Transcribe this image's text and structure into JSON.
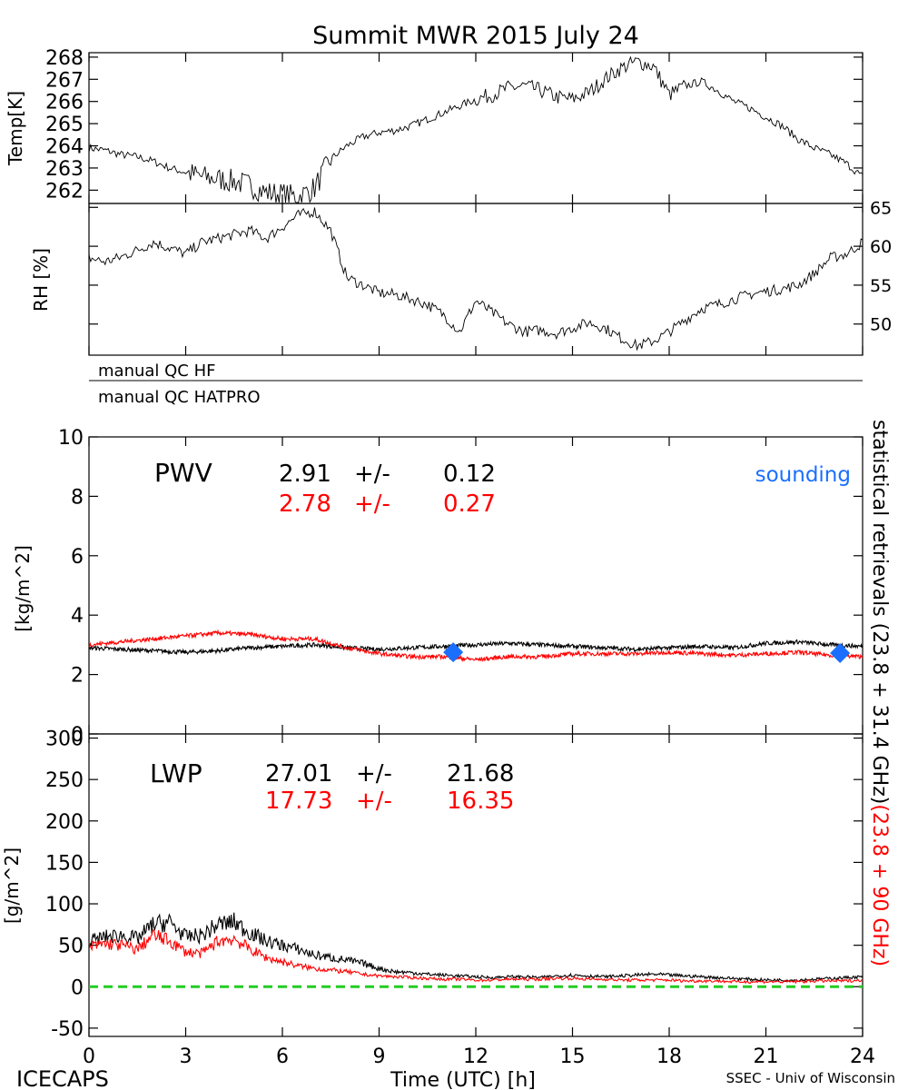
{
  "figure": {
    "title": "Summit MWR 2015 July 24",
    "footer_left": "ICECAPS",
    "footer_right": "SSEC - Univ of Wisconsin",
    "xlabel": "Time (UTC) [h]",
    "xticks": [
      "0",
      "3",
      "6",
      "9",
      "12",
      "15",
      "18",
      "21",
      "24"
    ],
    "right_label_black": "statistical retrievals (23.8 + 31.4 GHz)",
    "right_label_red": "(23.8 + 90 GHz)",
    "qc_labels": [
      "manual QC HF",
      "manual QC HATPRO"
    ]
  },
  "colors": {
    "black_series": "#000000",
    "red_series": "#ff0000",
    "sounding": "#1a6fff",
    "zero_line": "#22cc22"
  },
  "chart_data": [
    {
      "type": "line",
      "name": "temperature",
      "ylabel": "Temp[K]",
      "yticks": [
        "262",
        "263",
        "264",
        "265",
        "266",
        "267",
        "268"
      ],
      "ylim": [
        261.4,
        268.2
      ],
      "x": [
        0,
        0.5,
        1,
        1.5,
        2,
        2.5,
        3,
        3.5,
        4,
        4.5,
        5,
        5.5,
        6,
        6.5,
        7,
        7.5,
        8,
        8.5,
        9,
        9.5,
        10,
        10.5,
        11,
        11.5,
        12,
        12.5,
        13,
        13.5,
        14,
        14.5,
        15,
        15.5,
        16,
        16.5,
        17,
        17.5,
        18,
        18.5,
        19,
        19.5,
        20,
        20.5,
        21,
        21.5,
        22,
        22.5,
        23,
        23.5,
        24
      ],
      "values": [
        263.9,
        263.8,
        263.6,
        263.5,
        263.3,
        263.0,
        262.8,
        262.6,
        262.5,
        262.4,
        262.2,
        261.9,
        261.8,
        261.7,
        262.1,
        263.4,
        264.0,
        264.4,
        264.6,
        264.7,
        264.9,
        265.2,
        265.5,
        265.8,
        266.1,
        266.3,
        266.6,
        266.7,
        266.5,
        266.2,
        266.1,
        266.4,
        267.0,
        267.5,
        267.8,
        267.6,
        266.3,
        266.7,
        266.9,
        266.5,
        266.0,
        265.7,
        265.3,
        264.9,
        264.3,
        263.9,
        263.6,
        263.2,
        262.6
      ]
    },
    {
      "type": "line",
      "name": "relative-humidity",
      "ylabel": "RH [%]",
      "yticks": [
        "50",
        "55",
        "60",
        "65"
      ],
      "ylim": [
        46,
        65.5
      ],
      "x": [
        0,
        0.5,
        1,
        1.5,
        2,
        2.5,
        3,
        3.5,
        4,
        4.5,
        5,
        5.5,
        6,
        6.5,
        7,
        7.5,
        8,
        8.5,
        9,
        9.5,
        10,
        10.5,
        11,
        11.5,
        12,
        12.5,
        13,
        13.5,
        14,
        14.5,
        15,
        15.5,
        16,
        16.5,
        17,
        17.5,
        18,
        18.5,
        19,
        19.5,
        20,
        20.5,
        21,
        21.5,
        22,
        22.5,
        23,
        23.5,
        24
      ],
      "values": [
        58.5,
        58.0,
        58.6,
        59.5,
        60.5,
        59.8,
        59.0,
        60.5,
        61.0,
        61.5,
        62.0,
        61.0,
        62.5,
        64.0,
        64.5,
        62.0,
        56.0,
        55.0,
        54.0,
        53.8,
        53.2,
        52.5,
        51.2,
        49.0,
        53.0,
        51.5,
        50.0,
        49.0,
        49.2,
        48.8,
        49.5,
        50.2,
        49.5,
        48.2,
        47.2,
        47.8,
        49.0,
        50.5,
        52.0,
        52.5,
        53.2,
        53.8,
        54.2,
        54.5,
        55.0,
        56.5,
        58.5,
        59.0,
        60.5
      ]
    },
    {
      "type": "line",
      "name": "pwv",
      "panel_label": "PWV",
      "ylabel": "[kg/m^2]",
      "yticks": [
        "0",
        "2",
        "4",
        "6",
        "8",
        "10"
      ],
      "ylim": [
        0,
        10
      ],
      "stats": [
        {
          "mean": "2.91",
          "pm": "+/-",
          "sd": "0.12"
        },
        {
          "mean": "2.78",
          "pm": "+/-",
          "sd": "0.27"
        }
      ],
      "legend_sounding": "sounding",
      "x": [
        0,
        1,
        2,
        3,
        4,
        5,
        6,
        7,
        8,
        9,
        10,
        11,
        12,
        13,
        14,
        15,
        16,
        17,
        18,
        19,
        20,
        21,
        22,
        23,
        24
      ],
      "series": [
        {
          "color": "black",
          "values": [
            2.9,
            2.85,
            2.8,
            2.75,
            2.8,
            2.9,
            2.95,
            3.0,
            2.9,
            2.85,
            2.9,
            2.95,
            3.0,
            3.05,
            3.0,
            2.95,
            2.9,
            2.85,
            2.9,
            2.95,
            2.9,
            3.05,
            3.1,
            3.0,
            2.95
          ]
        },
        {
          "color": "red",
          "values": [
            3.0,
            3.1,
            3.2,
            3.3,
            3.4,
            3.35,
            3.2,
            3.2,
            2.9,
            2.7,
            2.6,
            2.6,
            2.5,
            2.6,
            2.6,
            2.7,
            2.7,
            2.7,
            2.75,
            2.7,
            2.65,
            2.7,
            2.75,
            2.65,
            2.6
          ]
        }
      ],
      "sounding_points": [
        [
          11.3,
          2.75
        ],
        [
          23.3,
          2.72
        ]
      ]
    },
    {
      "type": "line",
      "name": "lwp",
      "panel_label": "LWP",
      "ylabel": "[g/m^2]",
      "yticks": [
        "-50",
        "0",
        "50",
        "100",
        "150",
        "200",
        "250",
        "300"
      ],
      "ylim": [
        -60,
        305
      ],
      "stats": [
        {
          "mean": "27.01",
          "pm": "+/-",
          "sd": "21.68"
        },
        {
          "mean": "17.73",
          "pm": "+/-",
          "sd": "16.35"
        }
      ],
      "x": [
        0,
        0.5,
        1,
        1.5,
        2,
        2.5,
        3,
        3.5,
        4,
        4.5,
        5,
        5.5,
        6,
        6.5,
        7,
        7.5,
        8,
        8.5,
        9,
        9.5,
        10,
        10.5,
        11,
        11.5,
        12,
        12.5,
        13,
        13.5,
        14,
        14.5,
        15,
        15.5,
        16,
        16.5,
        17,
        17.5,
        18,
        18.5,
        19,
        19.5,
        20,
        20.5,
        21,
        21.5,
        22,
        22.5,
        23,
        23.5,
        24
      ],
      "series": [
        {
          "color": "black",
          "values": [
            55,
            60,
            62,
            58,
            75,
            78,
            60,
            62,
            75,
            78,
            65,
            55,
            50,
            45,
            38,
            35,
            32,
            28,
            22,
            18,
            17,
            15,
            14,
            13,
            12,
            11,
            12,
            12,
            11,
            13,
            14,
            13,
            12,
            13,
            14,
            15,
            14,
            13,
            12,
            11,
            10,
            9,
            8,
            8,
            8,
            9,
            10,
            11,
            12
          ]
        },
        {
          "color": "red",
          "values": [
            48,
            52,
            50,
            45,
            62,
            55,
            42,
            40,
            55,
            58,
            45,
            35,
            30,
            25,
            22,
            20,
            18,
            15,
            13,
            12,
            11,
            10,
            9,
            9,
            8,
            8,
            9,
            9,
            9,
            10,
            10,
            9,
            9,
            8,
            8,
            8,
            8,
            7,
            7,
            7,
            6,
            6,
            6,
            6,
            6,
            7,
            7,
            7,
            8
          ]
        }
      ],
      "zero_line": 0
    }
  ]
}
